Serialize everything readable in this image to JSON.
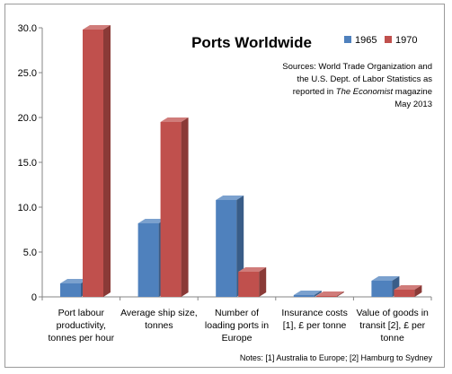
{
  "chart_data": {
    "type": "bar",
    "title": "Ports Worldwide",
    "categories": [
      [
        "Port labour",
        "productivity,",
        "tonnes per hour"
      ],
      [
        "Average ship size,",
        "tonnes"
      ],
      [
        "Number of",
        "loading ports in",
        "Europe"
      ],
      [
        "Insurance costs",
        "[1], £ per tonne"
      ],
      [
        "Value of goods in",
        "transit [2],  £  per",
        "tonne"
      ]
    ],
    "series": [
      {
        "name": "1965",
        "color": "#4f81bd",
        "values": [
          1.5,
          8.2,
          10.8,
          0.2,
          1.8
        ]
      },
      {
        "name": "1970",
        "color": "#c0504d",
        "values": [
          29.8,
          19.5,
          2.8,
          0.1,
          0.8
        ]
      }
    ],
    "ylim": [
      0,
      30
    ],
    "yticks": [
      "0",
      "5.0",
      "10.0",
      "15.0",
      "20.0",
      "25.0",
      "30.0"
    ],
    "legend_position": "top-right",
    "grid": false,
    "source_lines": [
      {
        "text": "Sources: World Trade Organization and"
      },
      {
        "text": "the U.S. Dept. of Labor Statistics as"
      },
      {
        "pre": "reported in ",
        "ital": "The Economist",
        "post": " magazine"
      },
      {
        "text": "May 2013"
      }
    ],
    "notes": "Notes: [1] Australia to Europe; [2] Hamburg to Sydney"
  }
}
